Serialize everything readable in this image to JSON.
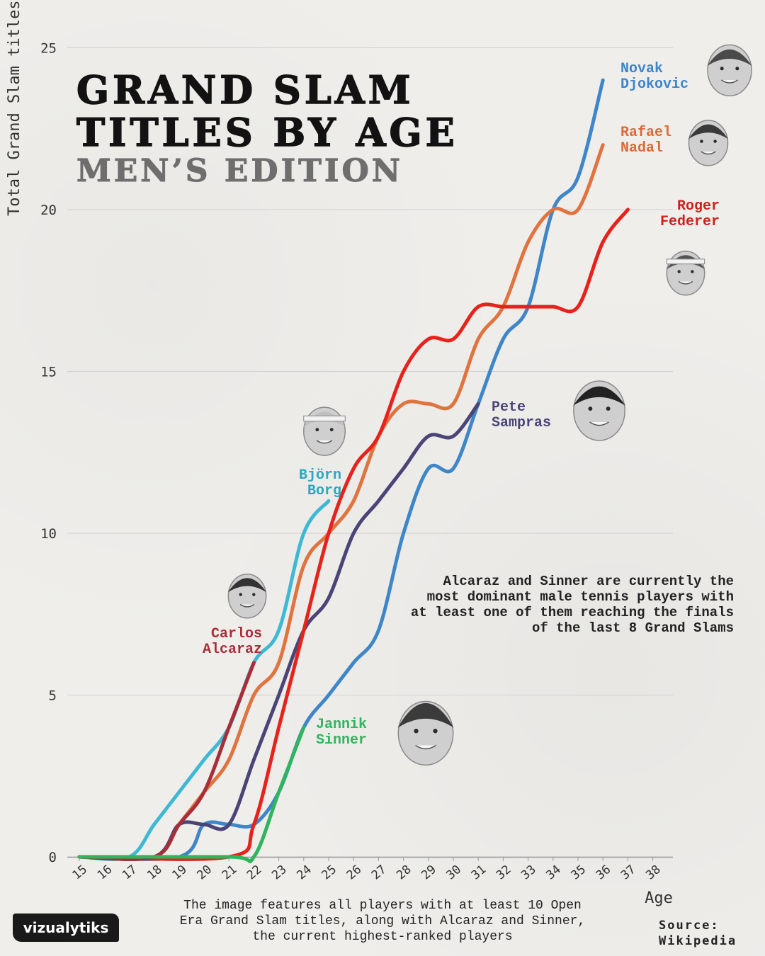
{
  "header": {
    "title_line1": "GRAND SLAM",
    "title_line2": "TITLES BY AGE",
    "subtitle": "MEN’S EDITION"
  },
  "annotation": "Alcaraz and Sinner are currently the most dominant male tennis players with at least one of them reaching the finals of the last 8 Grand Slams",
  "footnote": "The image features all players with at least 10 Open Era Grand Slam titles, along with Alcaraz and Sinner, the current highest-ranked players",
  "source": "Source: Wikipedia",
  "logo": "vizualytiks",
  "colors": {
    "djokovic": "#3f86c9",
    "nadal": "#e0733e",
    "federer": "#e8221b",
    "sampras": "#4a4576",
    "borg": "#3fb8d4",
    "alcaraz": "#a92d37",
    "sinner": "#2fb55d",
    "grid": "#cfcfcf",
    "axis": "#333333"
  },
  "chart_data": {
    "type": "line",
    "xlabel": "Age",
    "ylabel": "Total Grand Slam titles won",
    "xlim": [
      15,
      38
    ],
    "ylim": [
      0,
      25
    ],
    "x_ticks": [
      15,
      16,
      17,
      18,
      19,
      20,
      21,
      22,
      23,
      24,
      25,
      26,
      27,
      28,
      29,
      30,
      31,
      32,
      33,
      34,
      35,
      36,
      37,
      38
    ],
    "y_ticks": [
      0,
      5,
      10,
      15,
      20,
      25
    ],
    "grid": "horizontal",
    "series": [
      {
        "name": "Novak Djokovic",
        "label_lines": [
          "Novak",
          "Djokovic"
        ],
        "color_key": "djokovic",
        "points": [
          [
            15,
            0
          ],
          [
            19,
            0
          ],
          [
            20,
            1
          ],
          [
            21,
            1
          ],
          [
            22,
            1
          ],
          [
            23,
            2
          ],
          [
            24,
            4
          ],
          [
            25,
            5
          ],
          [
            26,
            6
          ],
          [
            27,
            7
          ],
          [
            28,
            10
          ],
          [
            29,
            12
          ],
          [
            30,
            12
          ],
          [
            31,
            14
          ],
          [
            32,
            16
          ],
          [
            33,
            17
          ],
          [
            34,
            20
          ],
          [
            35,
            21
          ],
          [
            36,
            24
          ]
        ]
      },
      {
        "name": "Rafael Nadal",
        "label_lines": [
          "Rafael",
          "Nadal"
        ],
        "color_key": "nadal",
        "points": [
          [
            15,
            0
          ],
          [
            18,
            0
          ],
          [
            19,
            1
          ],
          [
            20,
            2
          ],
          [
            21,
            3
          ],
          [
            22,
            5
          ],
          [
            23,
            6
          ],
          [
            24,
            9
          ],
          [
            25,
            10
          ],
          [
            26,
            11
          ],
          [
            27,
            13
          ],
          [
            28,
            14
          ],
          [
            29,
            14
          ],
          [
            30,
            14
          ],
          [
            31,
            16
          ],
          [
            32,
            17
          ],
          [
            33,
            19
          ],
          [
            34,
            20
          ],
          [
            35,
            20
          ],
          [
            36,
            22
          ]
        ]
      },
      {
        "name": "Roger Federer",
        "label_lines": [
          "Roger",
          "Federer"
        ],
        "color_key": "federer",
        "points": [
          [
            15,
            0
          ],
          [
            21,
            0
          ],
          [
            22,
            1
          ],
          [
            23,
            4
          ],
          [
            24,
            7
          ],
          [
            25,
            10
          ],
          [
            26,
            12
          ],
          [
            27,
            13
          ],
          [
            28,
            15
          ],
          [
            29,
            16
          ],
          [
            30,
            16
          ],
          [
            31,
            17
          ],
          [
            32,
            17
          ],
          [
            33,
            17
          ],
          [
            34,
            17
          ],
          [
            35,
            17
          ],
          [
            36,
            19
          ],
          [
            37,
            20
          ]
        ]
      },
      {
        "name": "Pete Sampras",
        "label_lines": [
          "Pete",
          "Sampras"
        ],
        "color_key": "sampras",
        "points": [
          [
            15,
            0
          ],
          [
            18,
            0
          ],
          [
            19,
            1
          ],
          [
            20,
            1
          ],
          [
            21,
            1
          ],
          [
            22,
            3
          ],
          [
            23,
            5
          ],
          [
            24,
            7
          ],
          [
            25,
            8
          ],
          [
            26,
            10
          ],
          [
            27,
            11
          ],
          [
            28,
            12
          ],
          [
            29,
            13
          ],
          [
            30,
            13
          ],
          [
            31,
            14
          ]
        ]
      },
      {
        "name": "Björn Borg",
        "label_lines": [
          "Björn",
          "Borg"
        ],
        "color_key": "borg",
        "points": [
          [
            15,
            0
          ],
          [
            17,
            0
          ],
          [
            18,
            1
          ],
          [
            19,
            2
          ],
          [
            20,
            3
          ],
          [
            21,
            4
          ],
          [
            22,
            6
          ],
          [
            23,
            7
          ],
          [
            24,
            10
          ],
          [
            25,
            11
          ]
        ]
      },
      {
        "name": "Carlos Alcaraz",
        "label_lines": [
          "Carlos",
          "Alcaraz"
        ],
        "color_key": "alcaraz",
        "points": [
          [
            15,
            0
          ],
          [
            18,
            0
          ],
          [
            19,
            1
          ],
          [
            20,
            2
          ],
          [
            21,
            4
          ],
          [
            22,
            6
          ]
        ]
      },
      {
        "name": "Jannik Sinner",
        "label_lines": [
          "Jannik",
          "Sinner"
        ],
        "color_key": "sinner",
        "points": [
          [
            15,
            0
          ],
          [
            21,
            0
          ],
          [
            22,
            0
          ],
          [
            23,
            2
          ],
          [
            24,
            4
          ]
        ]
      }
    ]
  }
}
